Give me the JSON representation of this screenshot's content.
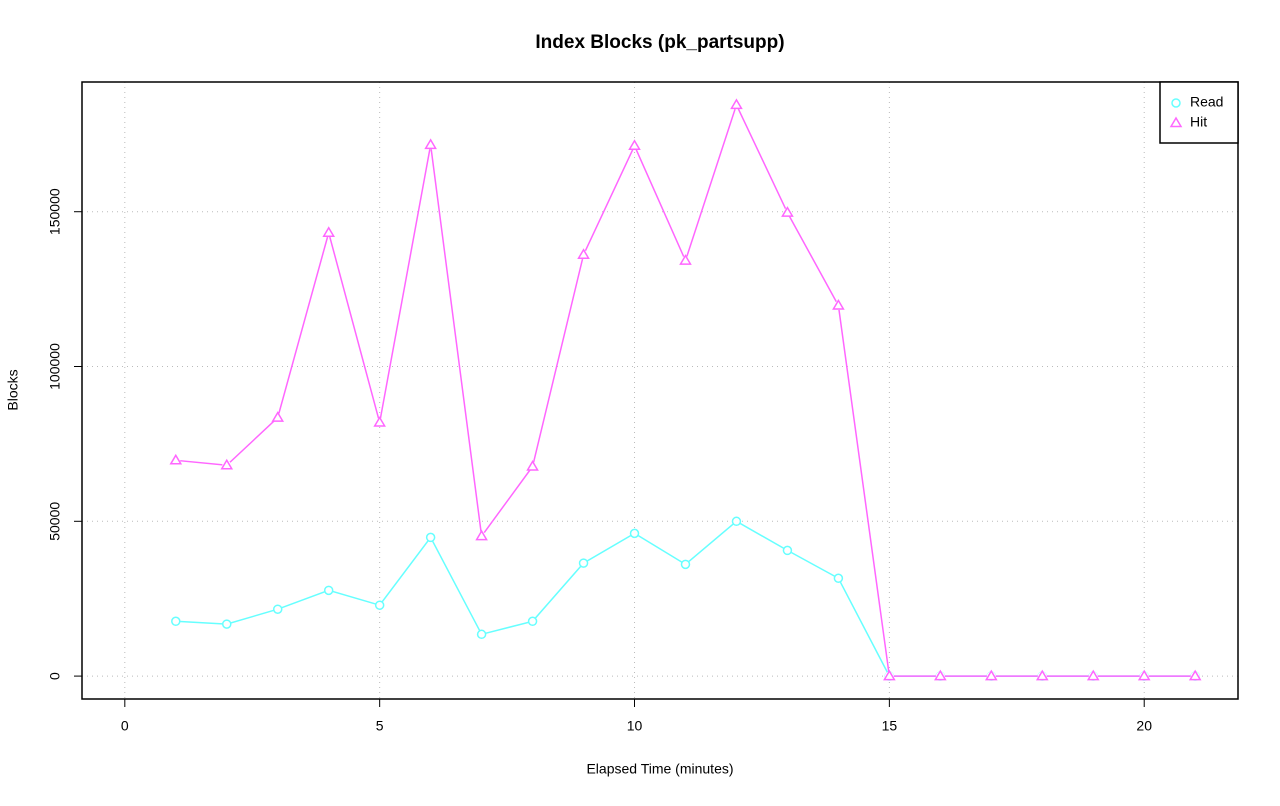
{
  "chart_data": {
    "type": "line",
    "title": "Index Blocks (pk_partsupp)",
    "x_label": "Elapsed Time (minutes)",
    "y_label": "Blocks",
    "x": [
      1,
      2,
      3,
      4,
      5,
      6,
      7,
      8,
      9,
      10,
      11,
      12,
      13,
      14,
      15,
      16,
      17,
      18,
      19,
      20,
      21
    ],
    "series": [
      {
        "name": "Read",
        "color": "#66ffff",
        "marker": "circle",
        "values": [
          17700,
          16800,
          21600,
          27700,
          22900,
          44800,
          13500,
          17700,
          36500,
          46100,
          36100,
          50000,
          40600,
          31600,
          0,
          0,
          0,
          0,
          0,
          0,
          0
        ]
      },
      {
        "name": "Hit",
        "color": "#ff66ff",
        "marker": "triangle",
        "values": [
          69700,
          68100,
          83500,
          143200,
          81900,
          171600,
          45200,
          67700,
          136100,
          171300,
          134200,
          184500,
          149700,
          119700,
          0,
          0,
          0,
          0,
          0,
          0,
          0
        ]
      }
    ],
    "xlim": [
      -0.84,
      21.84
    ],
    "xticks": [
      0,
      5,
      10,
      15,
      20
    ],
    "ylim": [
      -7400,
      191900
    ],
    "yticks": [
      0,
      50000,
      100000,
      150000
    ],
    "grid": true,
    "legend": "top-right"
  }
}
